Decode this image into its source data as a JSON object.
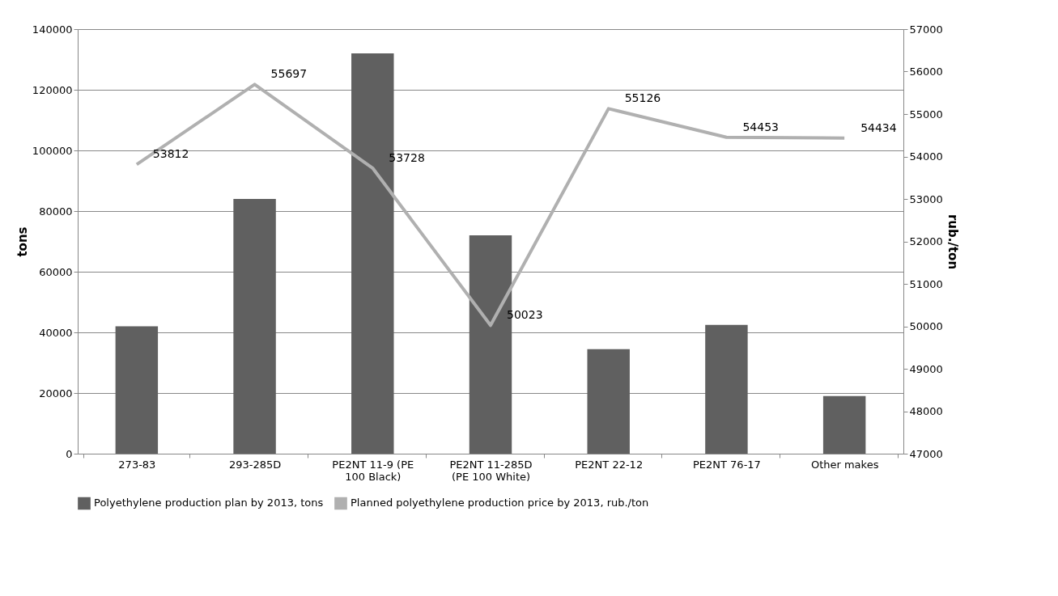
{
  "chart_data": {
    "type": "bar",
    "categories": [
      "273-83",
      "293-285D",
      "PE2NT 11-9 (PE 100 Black)",
      "PE2NT 11-285D (PE 100 White)",
      "PE2NT 22-12",
      "PE2NT 76-17",
      "Other makes"
    ],
    "series": [
      {
        "name": "Polyethylene production plan by 2013, tons",
        "color": "#606060",
        "values": [
          42000,
          84000,
          132000,
          72000,
          34500,
          42500,
          19000
        ]
      },
      {
        "name": "Planned polyethylene production price by 2013, rub./ton",
        "type": "line",
        "axis": "y2",
        "color": "#b0b0b0",
        "values": [
          53812,
          55697,
          53728,
          50023,
          55126,
          54453,
          54434
        ],
        "value_labels": [
          "53812",
          "55697",
          "53728",
          "50023",
          "55126",
          "54453",
          "54434"
        ]
      }
    ],
    "ylabel": "tons",
    "y2label": "rub./ton",
    "ylim": [
      0,
      140000
    ],
    "yticks": [
      0,
      20000,
      40000,
      60000,
      80000,
      100000,
      120000,
      140000
    ],
    "y2lim": [
      47000,
      57000
    ],
    "y2ticks": [
      47000,
      48000,
      49000,
      50000,
      51000,
      52000,
      53000,
      54000,
      55000,
      56000,
      57000
    ],
    "grid": "y",
    "legend": "bottom"
  }
}
